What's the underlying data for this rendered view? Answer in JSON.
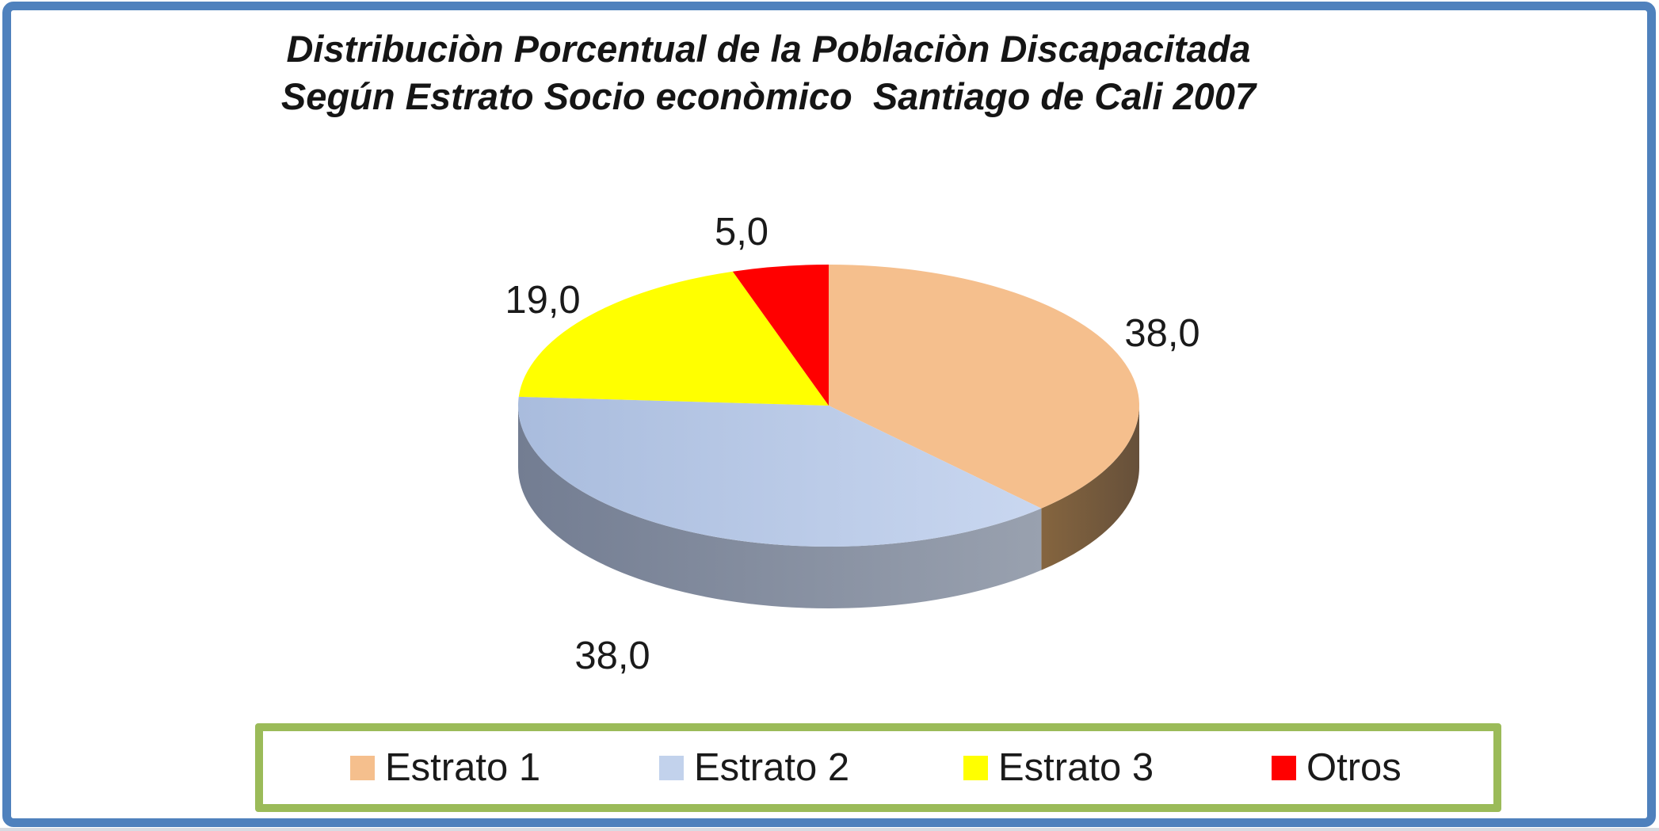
{
  "frame": {
    "color": "#4F81BD"
  },
  "title": {
    "line1": "Distribuciòn Porcentual de la Poblaciòn Discapacitada",
    "line2": "Según Estrato Socio econòmico  Santiago de Cali 2007"
  },
  "chart_data": {
    "type": "pie",
    "effect": "3d",
    "title": "Distribuciòn Porcentual de la Poblaciòn Discapacitada Según Estrato Socio econòmico Santiago de Cali 2007",
    "units": "percent",
    "decimal_separator": ",",
    "start_angle_deg": 0,
    "direction": "clockwise",
    "slices": [
      {
        "name": "Estrato 1",
        "value": 38.0,
        "label": "38,0",
        "top_color": "#F5BF8D",
        "side_color_from": "#85653F",
        "side_color_to": "#66503A"
      },
      {
        "name": "Estrato 2",
        "value": 38.0,
        "label": "38,0",
        "top_color": "#C2D2EC",
        "top_color_from": "#A9BCDD",
        "top_color_to": "#C9D7F0",
        "side_color_from": "#737D92",
        "side_color_to": "#99A1AF"
      },
      {
        "name": "Estrato 3",
        "value": 19.0,
        "label": "19,0",
        "top_color": "#FFFF00"
      },
      {
        "name": "Otros",
        "value": 5.0,
        "label": "5,0",
        "top_color": "#FF0000"
      }
    ],
    "legend": {
      "position": "bottom",
      "border_color": "#9BBB59",
      "items": [
        "Estrato 1",
        "Estrato 2",
        "Estrato 3",
        "Otros"
      ]
    }
  }
}
